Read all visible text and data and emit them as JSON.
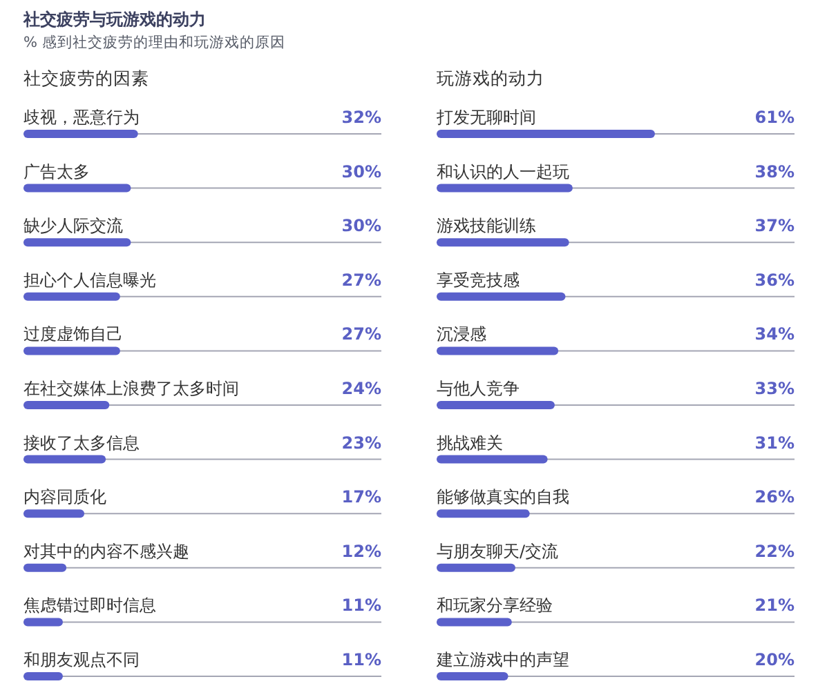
{
  "chart_data": [
    {
      "type": "other",
      "title": "社交疲劳与玩游戏的动力",
      "subtitle": "% 感到社交疲劳的理由和玩游戏的原因"
    },
    {
      "type": "bar",
      "orientation": "horizontal",
      "title": "社交疲劳的因素",
      "categories": [
        "歧视，恶意行为",
        "广告太多",
        "缺少人际交流",
        "担心个人信息曝光",
        "过度虚饰自己",
        "在社交媒体上浪费了太多时间",
        "接收了太多信息",
        "内容同质化",
        "对其中的内容不感兴趣",
        "焦虑错过即时信息",
        "和朋友观点不同"
      ],
      "values": [
        32,
        30,
        30,
        27,
        27,
        24,
        23,
        17,
        12,
        11,
        11
      ],
      "value_labels": [
        "32%",
        "30%",
        "30%",
        "27%",
        "27%",
        "24%",
        "23%",
        "17%",
        "12%",
        "11%",
        "11%"
      ],
      "color": "#5a60cb",
      "xlim": [
        0,
        100
      ]
    },
    {
      "type": "bar",
      "orientation": "horizontal",
      "title": "玩游戏的动力",
      "categories": [
        "打发无聊时间",
        "和认识的人一起玩",
        "游戏技能训练",
        "享受竞技感",
        "沉浸感",
        "与他人竞争",
        "挑战难关",
        "能够做真实的自我",
        "与朋友聊天/交流",
        "和玩家分享经验",
        "建立游戏中的声望"
      ],
      "values": [
        61,
        38,
        37,
        36,
        34,
        33,
        31,
        26,
        22,
        21,
        20
      ],
      "value_labels": [
        "61%",
        "38%",
        "37%",
        "36%",
        "34%",
        "33%",
        "31%",
        "26%",
        "22%",
        "21%",
        "20%"
      ],
      "color": "#5a60cb",
      "xlim": [
        0,
        100
      ]
    }
  ]
}
